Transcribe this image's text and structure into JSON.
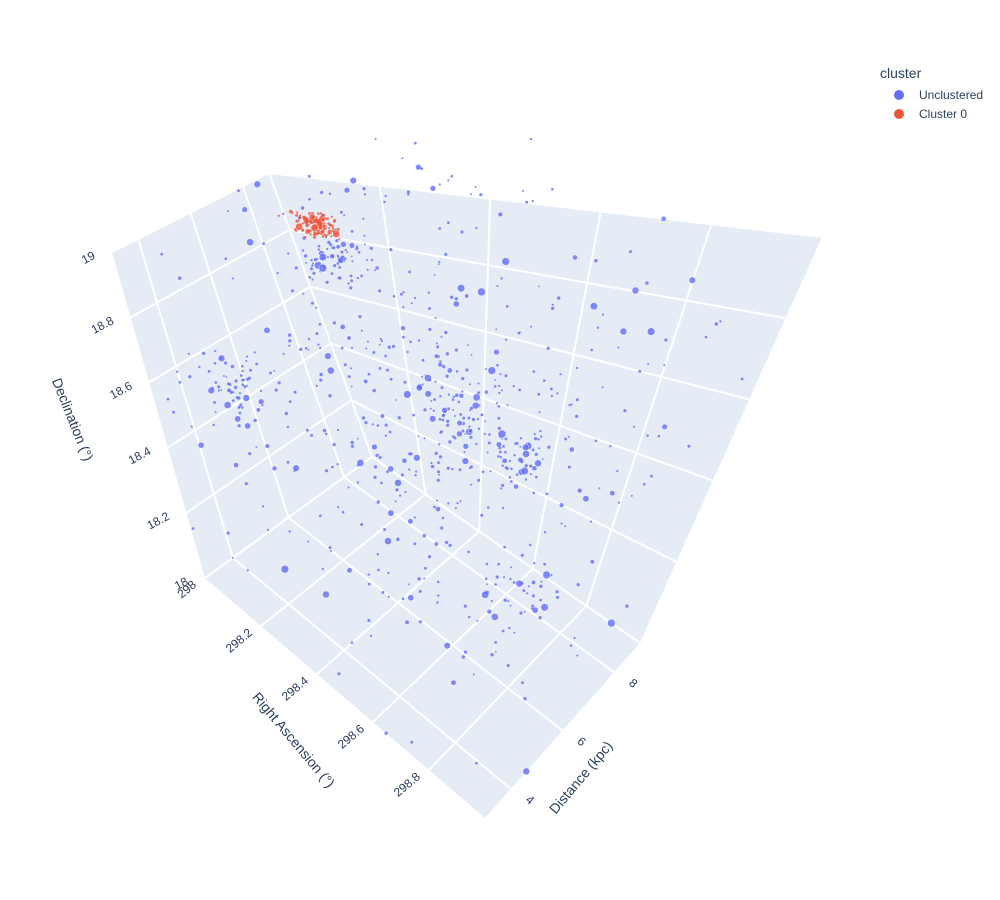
{
  "chart_data": {
    "type": "scatter",
    "dimensions": 3,
    "axes": {
      "x": {
        "title": "Right Ascension (°)",
        "range": [
          298.0,
          299.0
        ],
        "ticks": [
          "298",
          "298.2",
          "298.4",
          "298.6",
          "298.8"
        ]
      },
      "y": {
        "title": "Distance (kpc)",
        "range": [
          3.0,
          9.0
        ],
        "ticks": [
          "4",
          "6",
          "8"
        ]
      },
      "z": {
        "title": "Declination (°)",
        "range": [
          18.0,
          19.0
        ],
        "ticks": [
          "18",
          "18.2",
          "18.4",
          "18.6",
          "18.8",
          "19"
        ]
      }
    },
    "background": "#e5ecf6",
    "grid": true,
    "legend": {
      "title": "cluster",
      "placement": "top-right",
      "entries": [
        {
          "name": "Unclustered",
          "color": "#636efa"
        },
        {
          "name": "Cluster 0",
          "color": "#ef553b"
        }
      ]
    },
    "series": [
      {
        "name": "Unclustered",
        "color": "#636efa",
        "groups": [
          {
            "center": [
              298.22,
              7.1,
              18.82
            ],
            "spread": [
              0.035,
              0.25,
              0.035
            ],
            "count": 70
          },
          {
            "center": [
              298.15,
              4.2,
              18.55
            ],
            "spread": [
              0.05,
              0.35,
              0.05
            ],
            "count": 60
          },
          {
            "center": [
              298.55,
              8.3,
              18.33
            ],
            "spread": [
              0.04,
              0.25,
              0.04
            ],
            "count": 55
          },
          {
            "center": [
              298.45,
              7.5,
              18.45
            ],
            "spread": [
              0.06,
              0.4,
              0.06
            ],
            "count": 55
          },
          {
            "center": [
              298.75,
              6.8,
              18.12
            ],
            "spread": [
              0.05,
              0.4,
              0.05
            ],
            "count": 40
          },
          {
            "center": [
              298.5,
              6.0,
              18.5
            ],
            "spread": [
              0.28,
              1.7,
              0.28
            ],
            "count": 480
          }
        ]
      },
      {
        "name": "Cluster 0",
        "color": "#ef553b",
        "groups": [
          {
            "center": [
              298.1,
              8.4,
              18.87
            ],
            "spread": [
              0.018,
              0.13,
              0.018
            ],
            "count": 150
          }
        ]
      }
    ]
  }
}
